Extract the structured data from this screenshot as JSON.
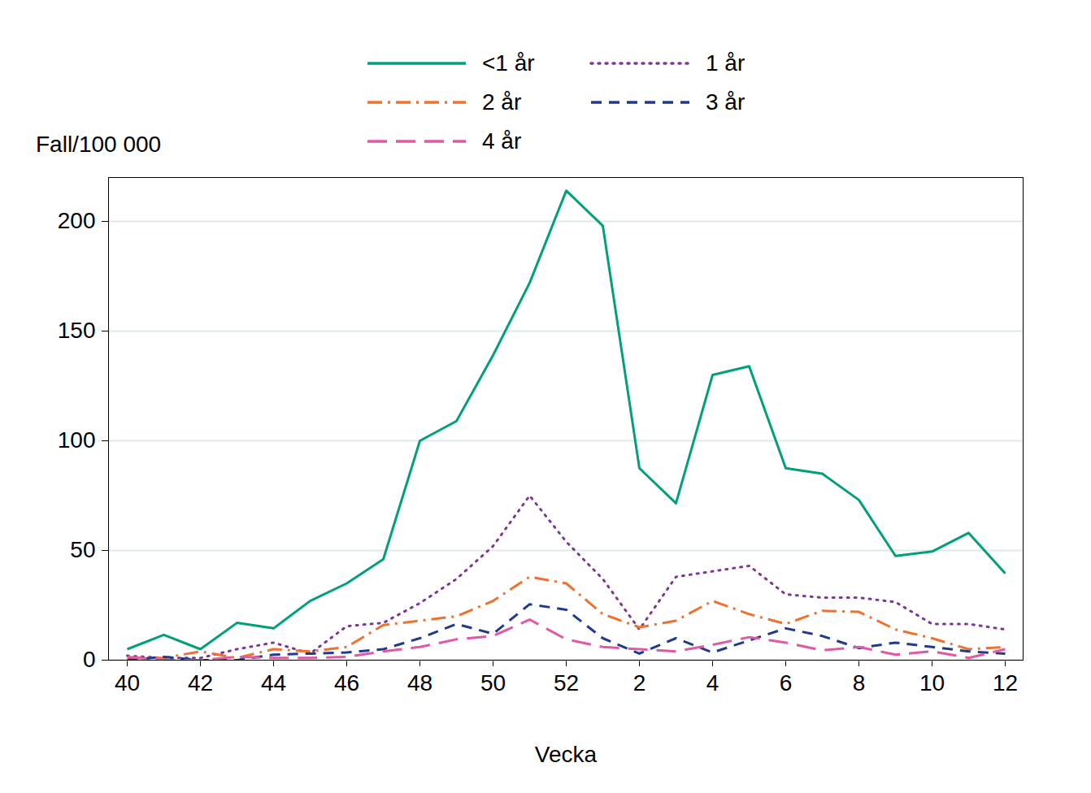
{
  "chart_data": {
    "type": "line",
    "x_label": "Vecka",
    "y_label": "Fall/100 000",
    "categories": [
      "40",
      null,
      "42",
      null,
      "44",
      null,
      "46",
      null,
      "48",
      null,
      "50",
      null,
      "52",
      null,
      "2",
      null,
      "4",
      null,
      "6",
      null,
      "8",
      null,
      "10",
      null,
      "12"
    ],
    "series": [
      {
        "name": "<1 år",
        "color": "#00a07a",
        "line_style": "solid",
        "values": [
          5,
          11.5,
          5,
          17,
          14.5,
          27,
          35,
          46,
          100,
          109,
          139,
          172,
          214,
          198,
          87.5,
          71.5,
          130,
          134,
          87.5,
          85,
          73,
          47.5,
          49.5,
          58,
          39.5
        ]
      },
      {
        "name": "1 år",
        "color": "#7b3894",
        "line_style": "dotted",
        "values": [
          2,
          1,
          1,
          5,
          8,
          3,
          15.5,
          17,
          26,
          37,
          52,
          75,
          54,
          37,
          14,
          38,
          40.5,
          43,
          30,
          28.5,
          28.5,
          26.5,
          16.5,
          16.5,
          14
        ]
      },
      {
        "name": "2 år",
        "color": "#ec7330",
        "line_style": "dashdot",
        "values": [
          1,
          1,
          4,
          1,
          5,
          4,
          6,
          16,
          18,
          20,
          27,
          38,
          35,
          21,
          15,
          18,
          27,
          21,
          16.5,
          22.5,
          22,
          14,
          10,
          5,
          6
        ]
      },
      {
        "name": "3 år",
        "color": "#213b8c",
        "line_style": "dashed",
        "values": [
          0,
          1.5,
          0,
          0,
          2.5,
          3,
          3.5,
          5,
          10,
          16.5,
          12,
          25.5,
          23,
          10,
          3,
          10,
          3.5,
          9,
          14.5,
          11,
          5.5,
          8,
          6,
          4,
          3
        ]
      },
      {
        "name": "4 år",
        "color": "#e05aa3",
        "line_style": "longdash",
        "values": [
          1.5,
          0,
          0,
          1.5,
          1,
          1,
          1.5,
          4,
          6,
          9.5,
          11,
          18.5,
          9.5,
          6,
          5,
          4,
          7,
          10.5,
          8,
          4.5,
          6,
          2.5,
          4,
          1,
          5
        ]
      }
    ],
    "ylim": [
      0,
      220
    ],
    "yticks": [
      0,
      50,
      100,
      150,
      200
    ],
    "grid": true,
    "legend": "top"
  }
}
